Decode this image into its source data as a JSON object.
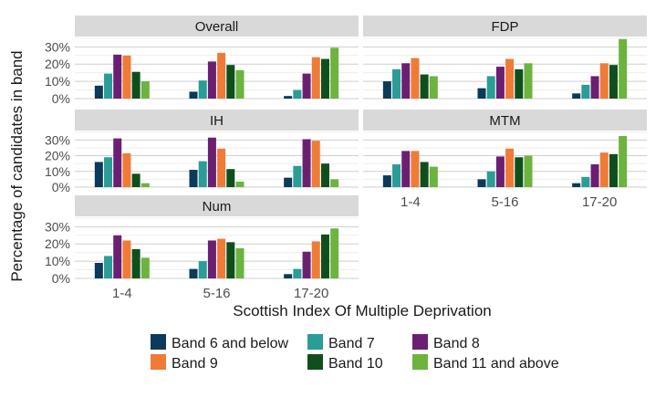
{
  "chart_data": {
    "type": "bar",
    "layout": "faceted small multiples",
    "ylabel": "Percentage of candidates in band",
    "xlabel": "Scottish Index Of Multiple Deprivation",
    "categories": [
      "1-4",
      "5-16",
      "17-20"
    ],
    "y_ticks": [
      "0%",
      "10%",
      "20%",
      "30%"
    ],
    "ylim": [
      0,
      36
    ],
    "grid": true,
    "legend_position": "bottom",
    "series_names": [
      "Band 6 and below",
      "Band 7",
      "Band 8",
      "Band 9",
      "Band 10",
      "Band 11 and above"
    ],
    "colors": [
      "#0b3a5a",
      "#2a9d96",
      "#6b1f73",
      "#ef7b37",
      "#0f4f1d",
      "#6db33f"
    ],
    "panels": [
      {
        "title": "Overall",
        "values": [
          [
            7.5,
            14.5,
            25.5,
            25,
            15.5,
            10
          ],
          [
            4,
            10.5,
            21.5,
            26.5,
            19.5,
            16.5
          ],
          [
            1.5,
            5,
            14.5,
            24,
            23,
            29.5
          ]
        ]
      },
      {
        "title": "FDP",
        "values": [
          [
            10,
            17,
            20.5,
            23.5,
            14,
            13
          ],
          [
            6,
            13,
            18.5,
            23,
            17,
            20.5
          ],
          [
            3,
            8,
            13,
            20.5,
            19.5,
            34.5
          ]
        ]
      },
      {
        "title": "IH",
        "values": [
          [
            16,
            19,
            31,
            21.5,
            8.5,
            2.5
          ],
          [
            11,
            16.5,
            31.5,
            24.5,
            11.5,
            3.5
          ],
          [
            6,
            13.5,
            30.5,
            29.5,
            15,
            5
          ]
        ]
      },
      {
        "title": "MTM",
        "values": [
          [
            7.5,
            14.5,
            23,
            23,
            16,
            13
          ],
          [
            5,
            10,
            19.5,
            24.5,
            19,
            20
          ],
          [
            2.5,
            6.5,
            14.5,
            22,
            21,
            32.5
          ]
        ]
      },
      {
        "title": "Num",
        "values": [
          [
            9,
            13,
            25,
            22,
            17,
            12
          ],
          [
            5.5,
            10,
            22,
            23,
            21,
            17.5
          ],
          [
            2.5,
            5.5,
            15.5,
            21.5,
            25.5,
            29
          ]
        ]
      }
    ]
  }
}
